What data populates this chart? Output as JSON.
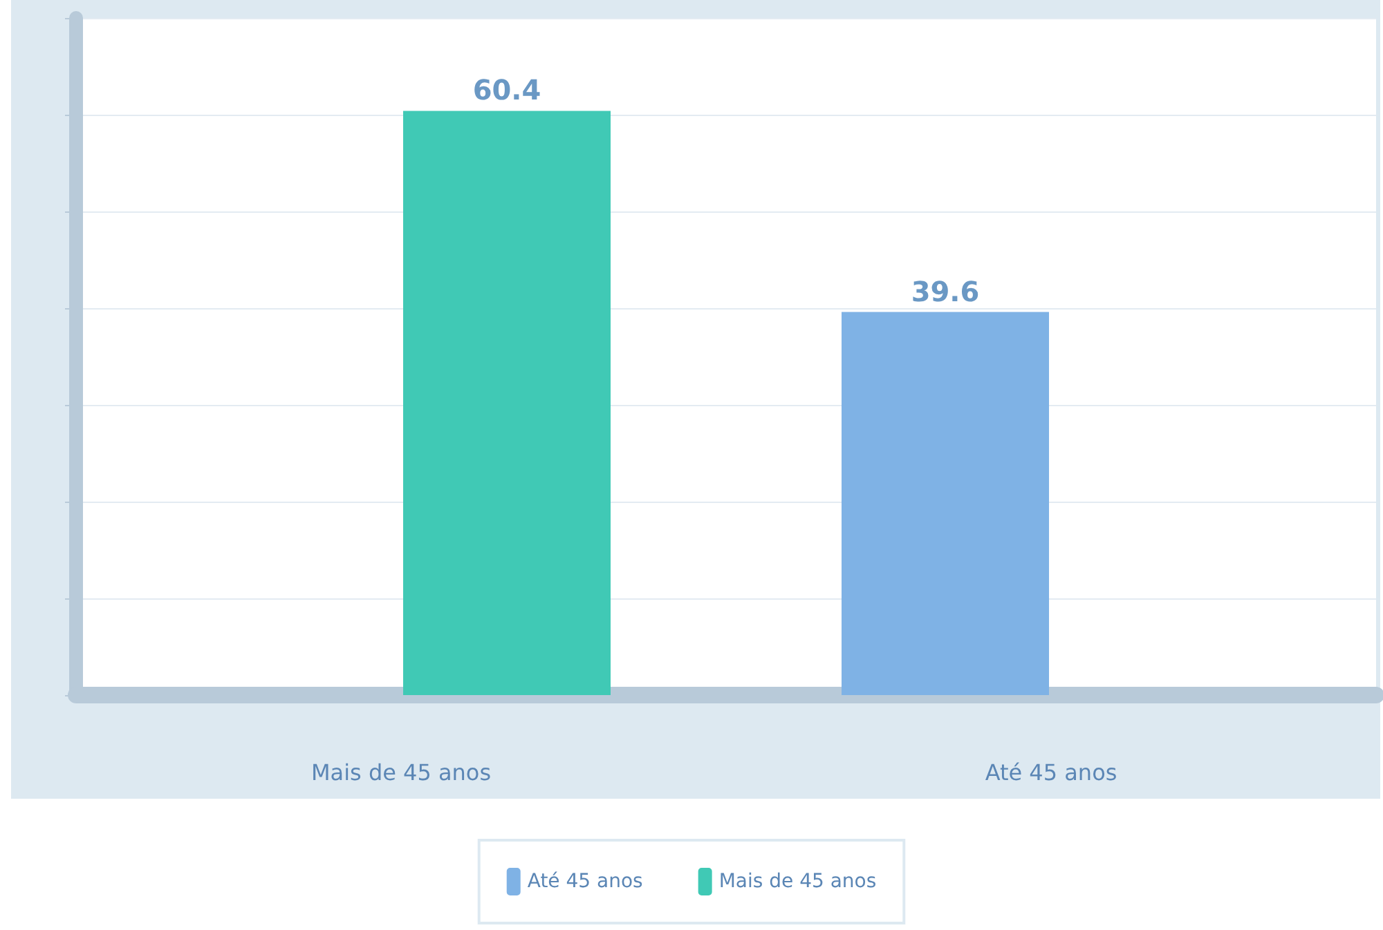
{
  "chart_data": {
    "type": "bar",
    "categories": [
      "Mais de 45 anos",
      "Até 45 anos"
    ],
    "series": [
      {
        "name": "Até 45 anos",
        "color": "#7fb2e5",
        "values": [
          null,
          39.6
        ]
      },
      {
        "name": "Mais de 45 anos",
        "color": "#40c9b5",
        "values": [
          60.4,
          null
        ]
      }
    ],
    "ylim": [
      0,
      70
    ],
    "yticks": [
      {
        "value": 0,
        "label": null
      },
      {
        "value": 10,
        "label": null
      },
      {
        "value": 20,
        "label": null
      },
      {
        "value": 30,
        "label": null
      },
      {
        "value": 40,
        "label": null
      },
      {
        "value": 50,
        "label": null
      },
      {
        "value": 60,
        "label": null
      },
      {
        "value": 70,
        "label": null
      }
    ],
    "tick_labels": "x",
    "grid": "y",
    "data_labels": true,
    "legend": "bottom"
  }
}
